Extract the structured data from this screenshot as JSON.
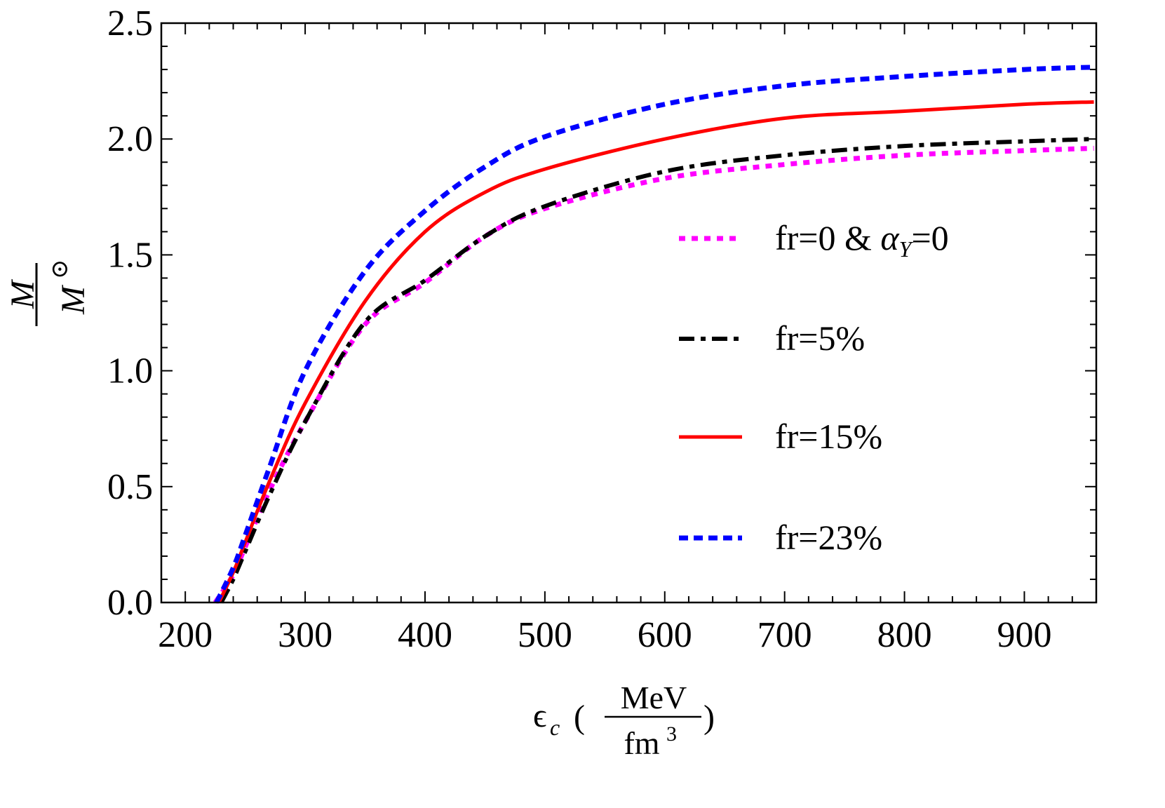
{
  "chart_data": {
    "type": "line",
    "xlabel": {
      "symbol": "ϵ",
      "sub": "c",
      "unit_num": "MeV",
      "unit_den": "fm",
      "unit_den_sup": "3"
    },
    "ylabel": {
      "num": "M",
      "den": "M",
      "den_sub": "⊙"
    },
    "xlim": [
      180,
      960
    ],
    "ylim": [
      0,
      2.5
    ],
    "x_ticks": [
      "200",
      "300",
      "400",
      "500",
      "600",
      "700",
      "800",
      "900"
    ],
    "y_ticks": [
      "0.0",
      "0.5",
      "1.0",
      "1.5",
      "2.0",
      "2.5"
    ],
    "grid": false,
    "legend_position": "right",
    "series": [
      {
        "name": "fr=0 & αY=0",
        "label_parts": [
          "fr=0 & ",
          "α",
          "Y",
          "=0"
        ],
        "color": "#ff00ff",
        "style": "dotted",
        "x": [
          225,
          240,
          250,
          270,
          300,
          350,
          400,
          450,
          500,
          600,
          700,
          800,
          900,
          958
        ],
        "y": [
          0,
          0.12,
          0.24,
          0.48,
          0.78,
          1.2,
          1.38,
          1.58,
          1.7,
          1.83,
          1.89,
          1.93,
          1.95,
          1.96
        ]
      },
      {
        "name": "fr=5%",
        "label": "fr=5%",
        "color": "#000000",
        "style": "dashdot",
        "x": [
          230,
          240,
          250,
          270,
          300,
          350,
          400,
          450,
          500,
          600,
          700,
          800,
          900,
          958
        ],
        "y": [
          0,
          0.1,
          0.22,
          0.46,
          0.78,
          1.21,
          1.39,
          1.58,
          1.71,
          1.86,
          1.93,
          1.97,
          1.99,
          2.0
        ]
      },
      {
        "name": "fr=15%",
        "label": "fr=15%",
        "color": "#ff0000",
        "style": "solid",
        "x": [
          228,
          240,
          250,
          270,
          300,
          350,
          400,
          450,
          500,
          600,
          700,
          800,
          900,
          958
        ],
        "y": [
          0,
          0.13,
          0.26,
          0.52,
          0.86,
          1.3,
          1.6,
          1.77,
          1.87,
          2.0,
          2.09,
          2.12,
          2.15,
          2.16
        ]
      },
      {
        "name": "fr=23%",
        "label": "fr=23%",
        "color": "#0000ff",
        "style": "dashed",
        "x": [
          226,
          240,
          250,
          270,
          300,
          350,
          400,
          450,
          500,
          600,
          700,
          800,
          900,
          958
        ],
        "y": [
          0,
          0.15,
          0.29,
          0.58,
          1.0,
          1.43,
          1.69,
          1.88,
          2.01,
          2.15,
          2.23,
          2.27,
          2.3,
          2.31
        ]
      }
    ]
  }
}
